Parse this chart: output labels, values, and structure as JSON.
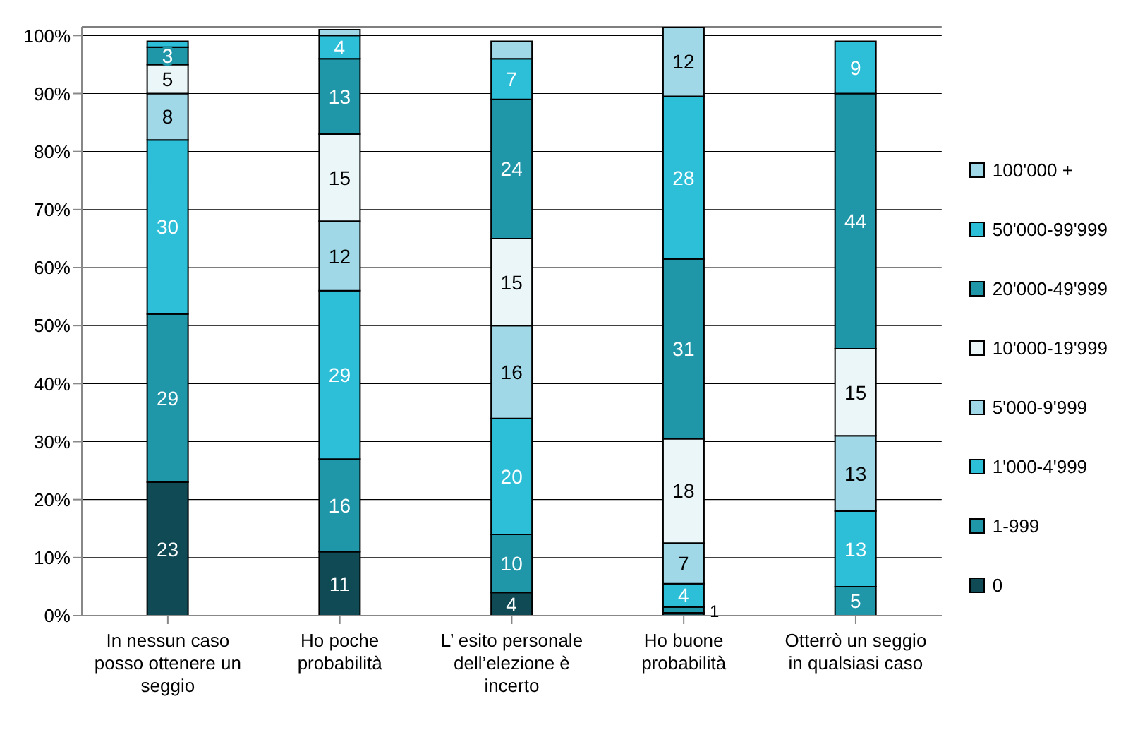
{
  "chart_data": {
    "type": "bar",
    "stacked": true,
    "grid": "y",
    "legend": "right",
    "categories": [
      "In nessun caso posso ottenere un seggio",
      "Ho poche probabilità",
      "L’ esito personale dell’elezione è incerto",
      "Ho buone probabilità",
      "Otterrò un seggio in qualsiasi caso"
    ],
    "ylim": [
      0,
      101.5
    ],
    "yticks": [
      {
        "value": 0,
        "label": "0%"
      },
      {
        "value": 10,
        "label": "10%"
      },
      {
        "value": 20,
        "label": "20%"
      },
      {
        "value": 30,
        "label": "30%"
      },
      {
        "value": 40,
        "label": "40%"
      },
      {
        "value": 50,
        "label": "50%"
      },
      {
        "value": 60,
        "label": "60%"
      },
      {
        "value": 70,
        "label": "70%"
      },
      {
        "value": 80,
        "label": "80%"
      },
      {
        "value": 90,
        "label": "90%"
      },
      {
        "value": 100,
        "label": "100%"
      }
    ],
    "series": [
      {
        "name": "0",
        "color": "#0f4a55",
        "values": [
          23,
          11,
          4,
          0.5,
          null
        ],
        "value_labels": [
          "23",
          "11",
          "4",
          null,
          null
        ]
      },
      {
        "name": "1-999",
        "color": "#2097a9",
        "values": [
          29,
          16,
          10,
          1,
          5
        ],
        "value_labels": [
          "29",
          "16",
          "10",
          "1",
          "5"
        ]
      },
      {
        "name": "1'000-4'999",
        "color": "#2ebfd8",
        "values": [
          30,
          29,
          20,
          4,
          13
        ],
        "value_labels": [
          "30",
          "29",
          "20",
          "4",
          "13"
        ]
      },
      {
        "name": "5'000-9'999",
        "color": "#a0d8e8",
        "values": [
          8,
          12,
          16,
          7,
          13
        ],
        "value_labels": [
          "8",
          "12",
          "16",
          "7",
          "13"
        ]
      },
      {
        "name": "10'000-19'999",
        "color": "#eaf6f8",
        "values": [
          5,
          15,
          15,
          18,
          15
        ],
        "value_labels": [
          "5",
          "15",
          "15",
          "18",
          "15"
        ]
      },
      {
        "name": "20'000-49'999",
        "color": "#2097a9",
        "values": [
          3,
          13,
          24,
          31,
          44
        ],
        "value_labels": [
          "3",
          "13",
          "24",
          "31",
          "44"
        ]
      },
      {
        "name": "50'000-99'999",
        "color": "#2ebfd8",
        "values": [
          1,
          4,
          7,
          28,
          9
        ],
        "value_labels": [
          null,
          "4",
          "7",
          "28",
          "9"
        ]
      },
      {
        "name": "100'000 +",
        "color": "#a0d8e8",
        "values": [
          null,
          1,
          3,
          12,
          null
        ],
        "value_labels": [
          null,
          null,
          null,
          "12",
          null
        ]
      }
    ]
  }
}
